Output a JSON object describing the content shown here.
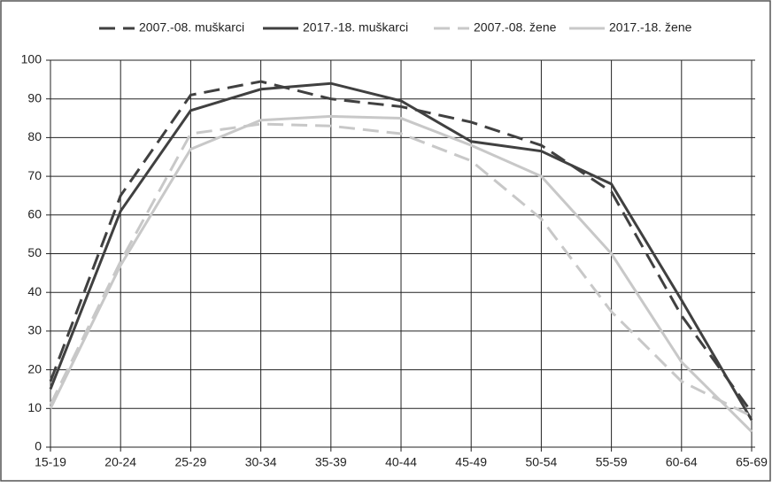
{
  "chart_data": {
    "type": "line",
    "categories": [
      "15-19",
      "20-24",
      "25-29",
      "30-34",
      "35-39",
      "40-44",
      "45-49",
      "50-54",
      "55-59",
      "60-64",
      "65-69"
    ],
    "series": [
      {
        "name": "2007.-08. muškarci",
        "color": "#404040",
        "dashed": true,
        "values": [
          17,
          65,
          91,
          94.5,
          90,
          88,
          84,
          78,
          66,
          34,
          9
        ]
      },
      {
        "name": "2017.-18. muškarci",
        "color": "#404040",
        "dashed": false,
        "values": [
          15,
          61,
          87,
          92.5,
          94,
          89.5,
          79,
          76.5,
          68,
          38,
          7
        ]
      },
      {
        "name": "2007.-08. žene",
        "color": "#c8c8c8",
        "dashed": true,
        "values": [
          11,
          48,
          81,
          83.5,
          83,
          81,
          74,
          59,
          35,
          17,
          8
        ]
      },
      {
        "name": "2017.-18. žene",
        "color": "#c8c8c8",
        "dashed": false,
        "values": [
          10,
          47,
          77,
          84.5,
          85.5,
          85,
          78,
          70,
          50,
          22,
          4
        ]
      }
    ],
    "ylim": [
      0,
      100
    ],
    "yticks": [
      0,
      10,
      20,
      30,
      40,
      50,
      60,
      70,
      80,
      90,
      100
    ],
    "grid": true,
    "legend": "top"
  }
}
